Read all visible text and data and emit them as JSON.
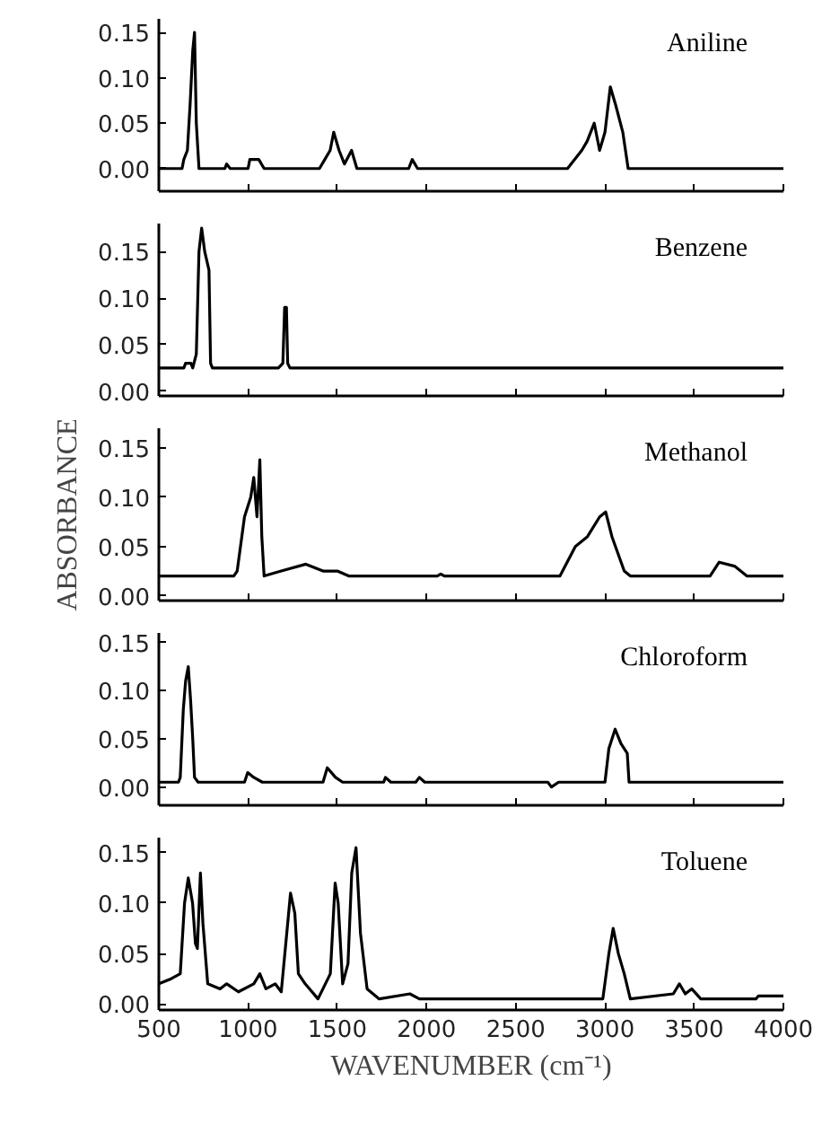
{
  "chart_data": [
    {
      "type": "line",
      "title": "Aniline",
      "xlim": [
        500,
        4000
      ],
      "ylim": [
        -0.025,
        0.165
      ],
      "xticks": [
        500,
        1000,
        1500,
        2000,
        2500,
        3000,
        3500,
        4000
      ],
      "yticks": [
        {
          "value": 0,
          "label": "0.00"
        },
        {
          "value": 0.05,
          "label": "0.05"
        },
        {
          "value": 0.1,
          "label": "0.10"
        },
        {
          "value": 0.15,
          "label": "0.15"
        }
      ],
      "tick_labels": "y",
      "grid": false,
      "series": [
        {
          "color": "#000000",
          "x": [
            500,
            630,
            640,
            660,
            675,
            690,
            700,
            710,
            725,
            870,
            880,
            900,
            1000,
            1010,
            1060,
            1090,
            1400,
            1430,
            1460,
            1480,
            1510,
            1540,
            1580,
            1610,
            1900,
            1920,
            1950,
            2790,
            2870,
            2900,
            2940,
            2970,
            3000,
            3030,
            3060,
            3100,
            3130,
            4000
          ],
          "values": [
            0,
            0,
            0.01,
            0.02,
            0.07,
            0.13,
            0.15,
            0.05,
            0,
            0,
            0.005,
            0,
            0,
            0.01,
            0.01,
            0,
            0,
            0.01,
            0.02,
            0.04,
            0.02,
            0.005,
            0.02,
            0,
            0,
            0.01,
            0,
            0,
            0.02,
            0.03,
            0.05,
            0.02,
            0.04,
            0.09,
            0.07,
            0.04,
            0,
            0
          ]
        }
      ]
    },
    {
      "type": "line",
      "title": "Benzene",
      "xlim": [
        500,
        4000
      ],
      "ylim": [
        -0.005,
        0.18
      ],
      "xticks": [
        500,
        1000,
        1500,
        2000,
        2500,
        3000,
        3500,
        4000
      ],
      "yticks": [
        {
          "value": 0,
          "label": "0.00"
        },
        {
          "value": 0.05,
          "label": "0.05"
        },
        {
          "value": 0.1,
          "label": "0.10"
        },
        {
          "value": 0.15,
          "label": "0.15"
        }
      ],
      "tick_labels": "y",
      "grid": false,
      "series": [
        {
          "color": "#000000",
          "x": [
            500,
            640,
            650,
            680,
            690,
            710,
            725,
            740,
            757,
            781,
            790,
            800,
            1170,
            1195,
            1205,
            1215,
            1222,
            1235,
            4000
          ],
          "values": [
            0.025,
            0.025,
            0.03,
            0.03,
            0.025,
            0.04,
            0.15,
            0.175,
            0.15,
            0.13,
            0.03,
            0.025,
            0.025,
            0.03,
            0.09,
            0.09,
            0.03,
            0.025,
            0.025
          ]
        }
      ]
    },
    {
      "type": "line",
      "title": "Methanol",
      "ylabel": "ABSORBANCE",
      "xlim": [
        500,
        4000
      ],
      "ylim": [
        -0.005,
        0.17
      ],
      "xticks": [
        500,
        1000,
        1500,
        2000,
        2500,
        3000,
        3500,
        4000
      ],
      "yticks": [
        {
          "value": 0,
          "label": "0.00"
        },
        {
          "value": 0.05,
          "label": "0.05"
        },
        {
          "value": 0.1,
          "label": "0.10"
        },
        {
          "value": 0.15,
          "label": "0.15"
        }
      ],
      "tick_labels": "y",
      "grid": false,
      "series": [
        {
          "color": "#000000",
          "x": [
            500,
            920,
            939,
            980,
            1015,
            1032,
            1050,
            1066,
            1077,
            1090,
            1186,
            1324,
            1420,
            1500,
            1564,
            2060,
            2080,
            2100,
            2748,
            2834,
            2902,
            2970,
            3004,
            3039,
            3108,
            3142,
            3589,
            3640,
            3726,
            3795,
            4000
          ],
          "values": [
            0.02,
            0.02,
            0.025,
            0.08,
            0.1,
            0.12,
            0.08,
            0.138,
            0.06,
            0.02,
            0.025,
            0.032,
            0.025,
            0.025,
            0.02,
            0.02,
            0.022,
            0.02,
            0.02,
            0.05,
            0.06,
            0.08,
            0.085,
            0.06,
            0.025,
            0.02,
            0.02,
            0.034,
            0.03,
            0.02,
            0.02
          ]
        }
      ]
    },
    {
      "type": "line",
      "title": "Chloroform",
      "xlim": [
        500,
        4000
      ],
      "ylim": [
        -0.019,
        0.16
      ],
      "xticks": [
        500,
        1000,
        1500,
        2000,
        2500,
        3000,
        3500,
        4000
      ],
      "yticks": [
        {
          "value": 0,
          "label": "0.00"
        },
        {
          "value": 0.05,
          "label": "0.05"
        },
        {
          "value": 0.1,
          "label": "0.10"
        },
        {
          "value": 0.15,
          "label": "0.15"
        }
      ],
      "tick_labels": "y",
      "grid": false,
      "series": [
        {
          "color": "#000000",
          "x": [
            500,
            610,
            620,
            637,
            650,
            665,
            678,
            690,
            700,
            720,
            980,
            998,
            1032,
            1080,
            1420,
            1444,
            1490,
            1530,
            1760,
            1770,
            1800,
            1940,
            1960,
            1990,
            2680,
            2700,
            2740,
            3000,
            3022,
            3057,
            3090,
            3125,
            3135,
            4000
          ],
          "values": [
            0.005,
            0.005,
            0.01,
            0.08,
            0.11,
            0.125,
            0.09,
            0.05,
            0.01,
            0.005,
            0.005,
            0.015,
            0.01,
            0.005,
            0.005,
            0.02,
            0.01,
            0.005,
            0.005,
            0.01,
            0.005,
            0.005,
            0.01,
            0.005,
            0.005,
            0,
            0.005,
            0.005,
            0.04,
            0.06,
            0.045,
            0.035,
            0.005,
            0.005
          ]
        }
      ]
    },
    {
      "type": "line",
      "title": "Toluene",
      "xlabel": "WAVENUMBER (cm⁻¹)",
      "xlim": [
        500,
        4000
      ],
      "ylim": [
        -0.006,
        0.165
      ],
      "xticks": [
        500,
        1000,
        1500,
        2000,
        2500,
        3000,
        3500,
        4000
      ],
      "yticks": [
        {
          "value": 0,
          "label": "0.00"
        },
        {
          "value": 0.05,
          "label": "0.05"
        },
        {
          "value": 0.1,
          "label": "0.10"
        },
        {
          "value": 0.15,
          "label": "0.15"
        }
      ],
      "grid": false,
      "series": [
        {
          "color": "#000000",
          "x": [
            500,
            569,
            620,
            644,
            665,
            689,
            705,
            716,
            733,
            747,
            774,
            843,
            880,
            946,
            1032,
            1066,
            1100,
            1152,
            1186,
            1238,
            1262,
            1282,
            1320,
            1392,
            1461,
            1488,
            1505,
            1530,
            1560,
            1581,
            1605,
            1630,
            1667,
            1735,
            1907,
            1960,
            2988,
            3022,
            3046,
            3075,
            3108,
            3142,
            3383,
            3417,
            3450,
            3486,
            3537,
            3846,
            3860,
            4000
          ],
          "values": [
            0.02,
            0.025,
            0.03,
            0.1,
            0.125,
            0.1,
            0.06,
            0.055,
            0.13,
            0.08,
            0.02,
            0.015,
            0.02,
            0.012,
            0.02,
            0.03,
            0.015,
            0.02,
            0.012,
            0.11,
            0.09,
            0.03,
            0.02,
            0.005,
            0.03,
            0.12,
            0.1,
            0.02,
            0.04,
            0.13,
            0.155,
            0.07,
            0.015,
            0.005,
            0.01,
            0.005,
            0.005,
            0.05,
            0.075,
            0.05,
            0.03,
            0.005,
            0.01,
            0.02,
            0.01,
            0.015,
            0.005,
            0.005,
            0.008,
            0.008
          ]
        }
      ]
    }
  ]
}
